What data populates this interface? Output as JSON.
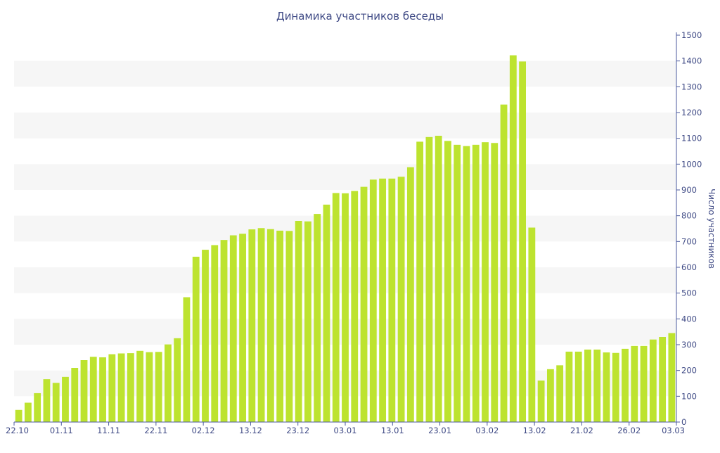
{
  "chart_data": {
    "type": "bar",
    "title": "Динамика участников беседы",
    "xlabel": "",
    "ylabel": "Число участников",
    "ylim": [
      0,
      1500
    ],
    "y_ticks": [
      0,
      100,
      200,
      300,
      400,
      500,
      600,
      700,
      800,
      900,
      1000,
      1100,
      1200,
      1300,
      1400,
      1500
    ],
    "x_tick_labels": [
      "22.10",
      "01.11",
      "11.11",
      "22.11",
      "02.12",
      "13.12",
      "23.12",
      "03.01",
      "13.01",
      "23.01",
      "03.02",
      "13.02",
      "21.02",
      "26.02",
      "03.03"
    ],
    "grid": "horizontal alternating bands",
    "y_axis_position": "right",
    "colors": {
      "bar": "#bde32f",
      "band": "#f6f6f6",
      "axis": "#4b5a9e",
      "text": "#3f4a85"
    },
    "values": [
      47,
      75,
      112,
      166,
      152,
      175,
      210,
      240,
      253,
      251,
      263,
      266,
      267,
      276,
      271,
      272,
      301,
      325,
      484,
      641,
      668,
      686,
      706,
      724,
      730,
      747,
      752,
      748,
      742,
      741,
      780,
      778,
      807,
      843,
      888,
      887,
      896,
      912,
      940,
      944,
      944,
      951,
      988,
      1087,
      1105,
      1110,
      1090,
      1075,
      1070,
      1075,
      1085,
      1082,
      1231,
      1422,
      1398,
      754,
      161,
      205,
      220,
      273,
      273,
      281,
      281,
      270,
      268,
      284,
      295,
      295,
      320,
      330,
      345
    ]
  }
}
